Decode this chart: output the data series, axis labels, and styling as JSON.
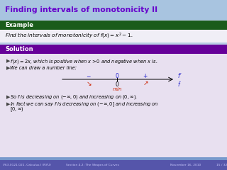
{
  "title": "Finding intervals of monotonicity II",
  "title_color": "#6600cc",
  "title_bg": "#a8c4e0",
  "example_label": "Example",
  "example_bg": "#1a5c1a",
  "example_text_plain": "Find the intervals of monotonicity of ",
  "example_text_formula": "$f(x) = x^2 - 1$.",
  "solution_label": "Solution",
  "solution_bg": "#660099",
  "solution_body_bg": "#e8e0f0",
  "bullet_color": "#555555",
  "arrow_color": "#555555",
  "fprime_color": "#2222cc",
  "f_color": "#2222cc",
  "red_color": "#cc2200",
  "footer_bg": "#5555aa",
  "footer_left": "V63.0121.021, Calculus I (NYU)",
  "footer_mid": "Section 4.2: The Shapes of Curves",
  "footer_right": "November 16, 2010",
  "footer_page": "15 / 32",
  "slide_bg": "#b8cce4"
}
